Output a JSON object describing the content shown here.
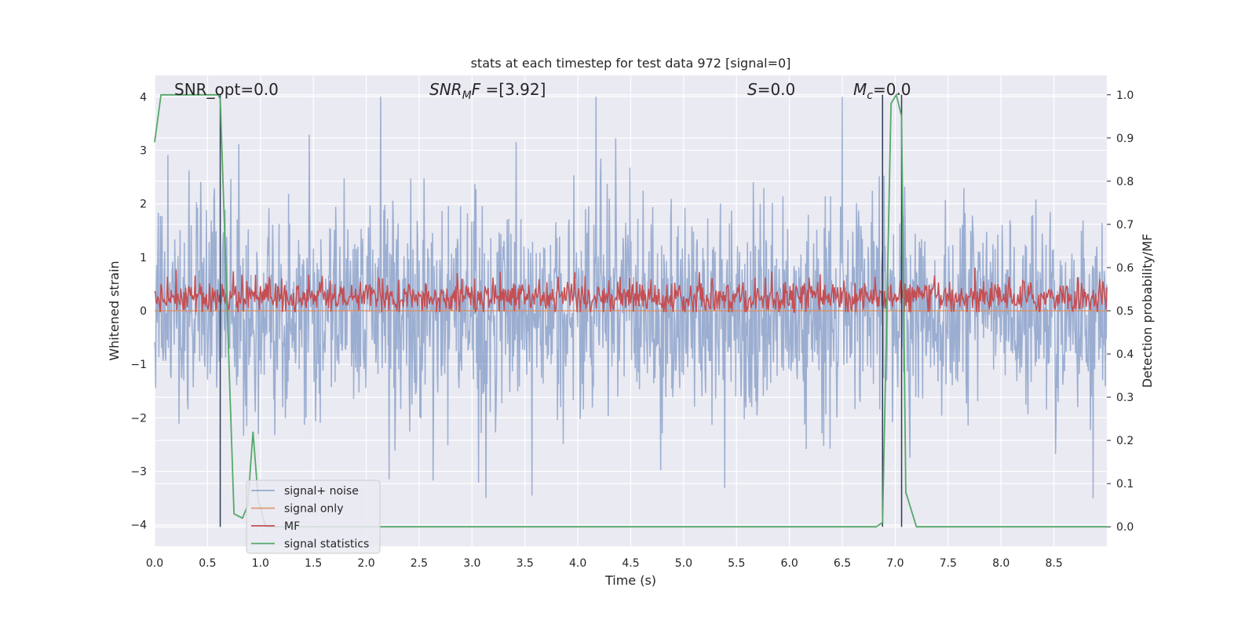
{
  "chart_data": {
    "type": "line",
    "title": "stats at each timestep for test data 972 [signal=0]",
    "xlabel": "Time (s)",
    "ylabel_left": "Whitened strain",
    "ylabel_right": "Detection probability/MF",
    "xlim": [
      0.0,
      9.0
    ],
    "ylim_left": [
      -4.4,
      4.4
    ],
    "ylim_right": [
      -0.045,
      1.045
    ],
    "x_ticks": [
      "0.0",
      "0.5",
      "1.0",
      "1.5",
      "2.0",
      "2.5",
      "3.0",
      "3.5",
      "4.0",
      "4.5",
      "5.0",
      "5.5",
      "6.0",
      "6.5",
      "7.0",
      "7.5",
      "8.0",
      "8.5"
    ],
    "y_left_ticks": [
      "4",
      "3",
      "2",
      "1",
      "0",
      "−1",
      "−2",
      "−3",
      "−4"
    ],
    "y_right_ticks": [
      "1.0",
      "0.9",
      "0.8",
      "0.7",
      "0.6",
      "0.5",
      "0.4",
      "0.3",
      "0.2",
      "0.1",
      "0.0"
    ],
    "grid": true,
    "legend_position": "lower-left",
    "annotations": {
      "snr_opt": "SNR_opt=0.0",
      "snr_mf_base": "SNR",
      "snr_mf_sub": "M",
      "snr_mf_rest": "F=[3.92]",
      "s_label": "S",
      "s_rest": "=0.0",
      "mc_base": "M",
      "mc_sub": "c",
      "mc_rest": "=0.0"
    },
    "vertical_lines_x": [
      0.62,
      6.88,
      7.06
    ],
    "series": [
      {
        "name": "signal+ noise",
        "axis": "left",
        "color": "#4c72b0",
        "description_values": "noise fluctuating between about -3.5 and 4.0 over full time range",
        "y_range": [
          -3.5,
          4.0
        ]
      },
      {
        "name": "signal only",
        "axis": "left",
        "color": "#dd8452",
        "x": [
          0.0,
          9.0
        ],
        "y": [
          0.0,
          0.0
        ]
      },
      {
        "name": "MF",
        "axis": "right",
        "color": "#c44e52",
        "y_range": [
          0.5,
          0.6
        ]
      },
      {
        "name": "signal statistics",
        "axis": "right",
        "color": "#55a868",
        "x": [
          0.0,
          0.06,
          0.15,
          0.3,
          0.45,
          0.6,
          0.62,
          0.7,
          0.75,
          0.83,
          0.88,
          0.93,
          0.98,
          1.05,
          1.2,
          2.0,
          3.0,
          4.0,
          5.0,
          6.0,
          6.82,
          6.88,
          6.92,
          6.96,
          7.01,
          7.06,
          7.1,
          7.2,
          9.0
        ],
        "y": [
          0.89,
          1.0,
          1.0,
          1.0,
          1.0,
          1.0,
          0.99,
          0.4,
          0.03,
          0.02,
          0.05,
          0.22,
          0.06,
          0.0,
          0.0,
          0.0,
          0.0,
          0.0,
          0.0,
          0.0,
          0.0,
          0.01,
          0.5,
          0.98,
          1.0,
          0.95,
          0.08,
          0.0,
          0.0
        ]
      }
    ]
  }
}
